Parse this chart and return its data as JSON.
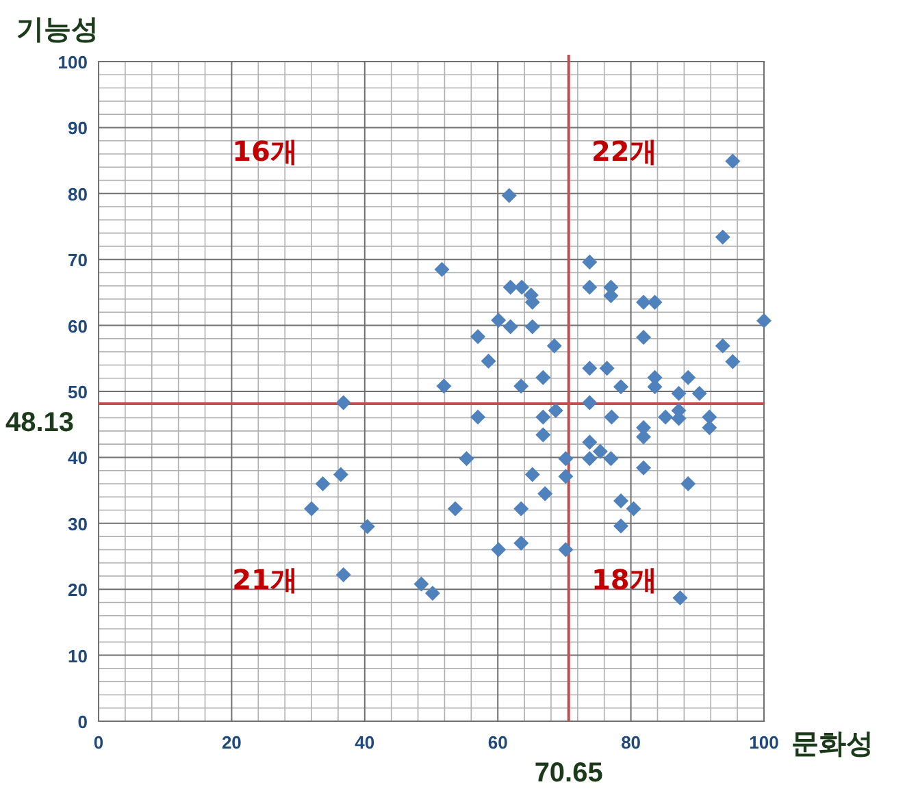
{
  "chart_data": {
    "type": "scatter",
    "xlabel": "문화성",
    "ylabel": "기능성",
    "xlim": [
      0,
      100
    ],
    "ylim": [
      0,
      100
    ],
    "xticks": [
      0,
      20,
      40,
      60,
      80,
      100
    ],
    "yticks": [
      0,
      10,
      20,
      30,
      40,
      50,
      60,
      70,
      80,
      90,
      100
    ],
    "grid": true,
    "marker": "diamond",
    "series": [
      {
        "color": "#4f81bd",
        "x": [
          51.6,
          61.7,
          61.9,
          63.6,
          65.0,
          65.2,
          60.1,
          61.9,
          65.2,
          57.0,
          58.6,
          51.9,
          63.5,
          66.8,
          36.8,
          57.0,
          66.8,
          66.8,
          55.3,
          65.2,
          36.4,
          93.8,
          73.8,
          73.8,
          77.0,
          77.0,
          81.9,
          83.6,
          100,
          81.9,
          93.8,
          95.3,
          68.5,
          73.8,
          76.4,
          78.5,
          83.6,
          83.6,
          88.6,
          87.2,
          90.3,
          73.8,
          68.7,
          77.1,
          81.9,
          81.9,
          85.2,
          87.2,
          87.2,
          91.8,
          91.8,
          73.8,
          73.8,
          75.4,
          77.0,
          70.2,
          81.9,
          70.2,
          32.0,
          33.7,
          40.4,
          36.8,
          48.5,
          50.2,
          53.6,
          60.1,
          63.5,
          63.5,
          67.1,
          70.2,
          88.6,
          78.5,
          80.4,
          78.5,
          87.4,
          95.3
        ],
        "values": [
          68.5,
          79.7,
          65.8,
          65.8,
          64.6,
          63.5,
          60.8,
          59.8,
          59.8,
          58.3,
          54.6,
          50.8,
          50.8,
          52.1,
          48.3,
          46.1,
          46.1,
          43.4,
          39.8,
          37.4,
          37.4,
          73.4,
          69.6,
          65.8,
          65.8,
          64.5,
          63.5,
          63.5,
          60.7,
          58.2,
          56.9,
          54.5,
          56.9,
          53.5,
          53.5,
          50.7,
          52.1,
          50.7,
          52.1,
          49.7,
          49.7,
          48.3,
          47.1,
          46.1,
          44.5,
          43.1,
          46.1,
          47.1,
          45.9,
          46.1,
          44.5,
          42.3,
          39.8,
          40.9,
          39.8,
          39.8,
          38.4,
          37.1,
          32.2,
          36.0,
          29.5,
          22.2,
          20.8,
          19.4,
          32.2,
          26.0,
          27.0,
          32.2,
          34.5,
          26.0,
          36.0,
          33.4,
          32.2,
          29.6,
          18.7,
          84.9
        ]
      }
    ],
    "ref_lines": [
      {
        "axis": "x",
        "value": 70.65,
        "label": "70.65",
        "color": "#c0504d"
      },
      {
        "axis": "y",
        "value": 48.13,
        "label": "48.13",
        "color": "#c0504d"
      }
    ],
    "annotations": [
      "16개",
      "22개",
      "21개",
      "18개"
    ]
  }
}
